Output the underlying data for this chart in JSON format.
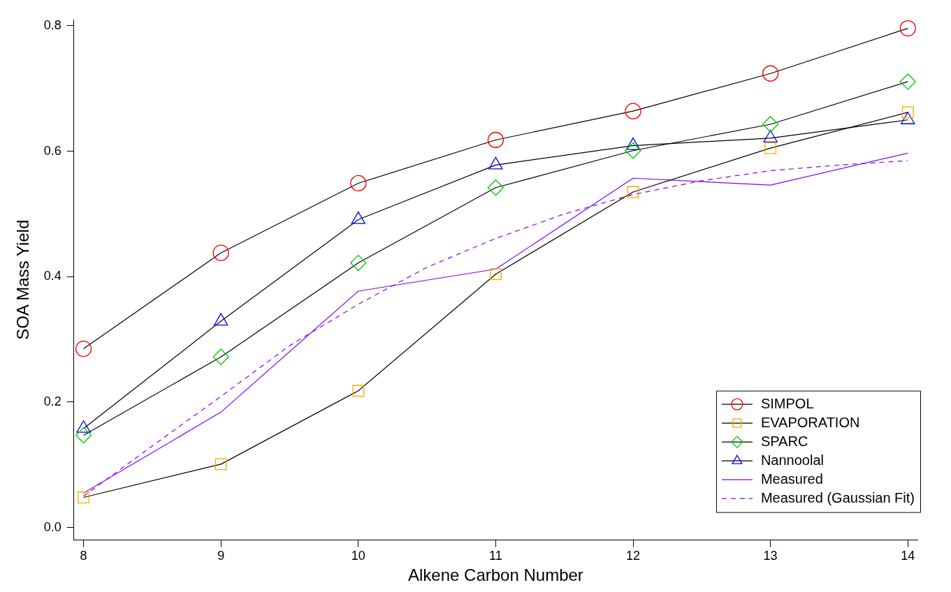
{
  "chart_data": {
    "type": "line",
    "xlabel": "Alkene Carbon Number",
    "ylabel": "SOA Mass Yield",
    "x": [
      8,
      9,
      10,
      11,
      12,
      13,
      14
    ],
    "xlim": [
      7.93,
      14.07
    ],
    "ylim": [
      -0.02,
      0.81
    ],
    "xticks": [
      8,
      9,
      10,
      11,
      12,
      13,
      14
    ],
    "yticks": [
      {
        "value": 0,
        "label": "0.0"
      },
      {
        "value": 0.2,
        "label": "0.2"
      },
      {
        "value": 0.4,
        "label": "0.4"
      },
      {
        "value": 0.6,
        "label": "0.6"
      },
      {
        "value": 0.8,
        "label": "0.8"
      }
    ],
    "grid": false,
    "legend": "bottom right",
    "series": [
      {
        "name": "SIMPOL",
        "color": "#000000",
        "colors": [
          "#ff0000",
          "#ff0000",
          "#ff0000",
          "#ff0000",
          "#ff0000",
          "#ff0000",
          "#ff0000"
        ],
        "marker": "circle",
        "values": [
          0.285,
          0.438,
          0.549,
          0.618,
          0.664,
          0.724,
          0.796
        ]
      },
      {
        "name": "EVAPORATION",
        "color": "#000000",
        "colors": [
          "#ffa500",
          "#ffa500",
          "#ffa500",
          "#ffa500",
          "#ffa500",
          "#ffa500",
          "#ffa500"
        ],
        "marker": "square",
        "values": [
          0.048,
          0.101,
          0.218,
          0.404,
          0.535,
          0.605,
          0.662
        ]
      },
      {
        "name": "SPARC",
        "color": "#000000",
        "colors": [
          "#00cc00",
          "#00cc00",
          "#00cc00",
          "#00cc00",
          "#00cc00",
          "#00cc00",
          "#00cc00"
        ],
        "marker": "diamond",
        "values": [
          0.147,
          0.272,
          0.422,
          0.542,
          0.601,
          0.643,
          0.711
        ]
      },
      {
        "name": "Nannoolal",
        "color": "#000000",
        "colors": [
          "#0000ff",
          "#0000ff",
          "#0000ff",
          "#0000ff",
          "#0000ff",
          "#0000ff",
          "#0000ff"
        ],
        "marker": "triangle",
        "values": [
          0.158,
          0.329,
          0.491,
          0.578,
          0.609,
          0.621,
          0.65
        ]
      },
      {
        "name": "Measured",
        "color": "#8000ff",
        "marker": "none",
        "line_style": "solid",
        "values": [
          0.055,
          0.184,
          0.377,
          0.412,
          0.557,
          0.546,
          0.597
        ]
      },
      {
        "name": "Measured (Gaussian Fit)",
        "color": "#8000ff",
        "marker": "none",
        "line_style": "dashed",
        "x": [
          8,
          8.5,
          9,
          9.5,
          10,
          10.5,
          11,
          11.5,
          12,
          12.5,
          13,
          13.5,
          14
        ],
        "values": [
          0.05,
          0.13,
          0.209,
          0.29,
          0.356,
          0.415,
          0.461,
          0.5,
          0.531,
          0.553,
          0.569,
          0.578,
          0.585
        ]
      }
    ]
  }
}
